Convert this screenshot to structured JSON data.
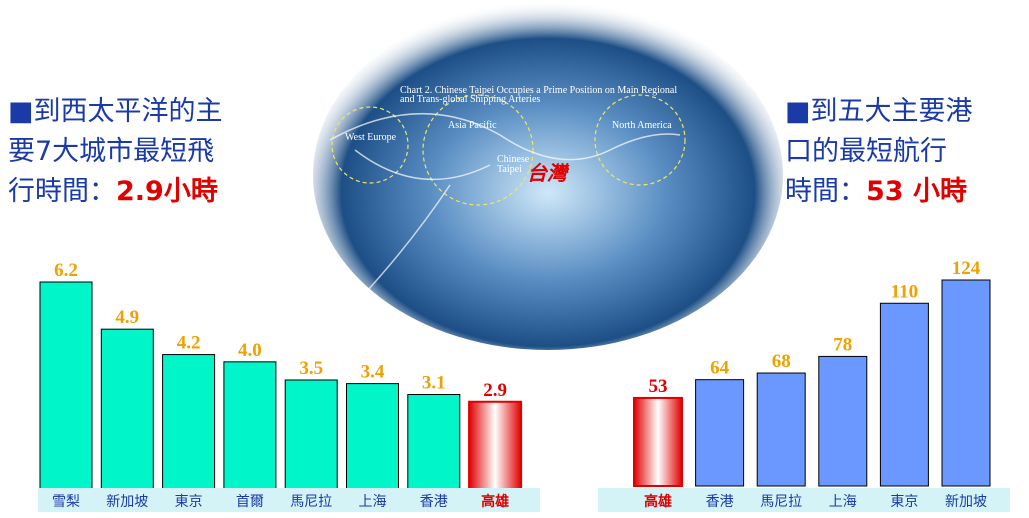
{
  "left_heading": {
    "lines": [
      "■到西太平洋的主",
      "要7大城市最短飛",
      "行時間："
    ],
    "highlight": "2.9小時"
  },
  "right_heading": {
    "lines": [
      "■到五大主要港",
      "口的最短航行",
      "時間："
    ],
    "highlight": "53 小時"
  },
  "map": {
    "caption": [
      "Chart 2.  Chinese Taipei Occupies a Prime Position on Main Regional",
      "and Trans-global Shipping Arteries"
    ],
    "regions": [
      "West Europe",
      "Asia Pacific",
      "North America"
    ],
    "taipei": [
      "Chinese",
      "Taipei"
    ],
    "taiwan": "台灣"
  },
  "chart_data": [
    {
      "type": "bar",
      "categories": [
        "雪梨",
        "新加坡",
        "東京",
        "首爾",
        "馬尼拉",
        "上海",
        "香港",
        "高雄"
      ],
      "values": [
        6.2,
        4.9,
        4.2,
        4.0,
        3.5,
        3.4,
        3.1,
        2.9
      ],
      "value_labels": [
        "6.2",
        "4.9",
        "4.2",
        "4.0",
        "3.5",
        "3.4",
        "3.1",
        "2.9"
      ],
      "bar_color": "#00f5c8",
      "highlight_color": "#e00000",
      "highlight_index": 7,
      "label_color": "#f0a000",
      "category_color": "#1a3aa8",
      "strip_color": "#d4f3f7"
    },
    {
      "type": "bar",
      "categories": [
        "高雄",
        "香港",
        "馬尼拉",
        "上海",
        "東京",
        "新加坡"
      ],
      "values": [
        53,
        64,
        68,
        78,
        110,
        124
      ],
      "bar_color": "#6a98ff",
      "highlight_color": "#e00000",
      "highlight_index": 0,
      "label_color": "#f0a000",
      "category_color": "#1a3aa8",
      "strip_color": "#d4f3f7"
    }
  ]
}
